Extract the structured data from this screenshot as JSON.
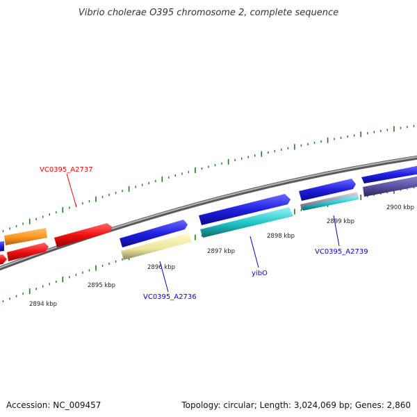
{
  "title": "Vibrio cholerae O395 chromosome 2, complete sequence",
  "footer": {
    "accession": "Accession: NC_009457",
    "summary": "Topology: circular; Length: 3,024,069 bp; Genes: 2,860"
  },
  "kbp_labels": [
    "2894 kbp",
    "2895 kbp",
    "2896 kbp",
    "2897 kbp",
    "2898 kbp",
    "2899 kbp",
    "2900 kbp"
  ],
  "gene_labels": [
    {
      "text": "VC0395_A2737",
      "color": "#ff0000"
    },
    {
      "text": "VC0395_A2736",
      "color": "#0000cc"
    },
    {
      "text": "yibO",
      "color": "#0000cc"
    },
    {
      "text": "VC0395_A2739",
      "color": "#0000cc"
    }
  ],
  "colors": {
    "backbone": "#8a8a8a",
    "tick": "#1a7a1a",
    "forward_cds": "#2020e0",
    "red_cds": "#ee1111",
    "orange_cds": "#ff9922",
    "yellow_cds": "#ece59a",
    "cyan_cds": "#22c8cc",
    "purple_cds": "#5a52a0"
  }
}
